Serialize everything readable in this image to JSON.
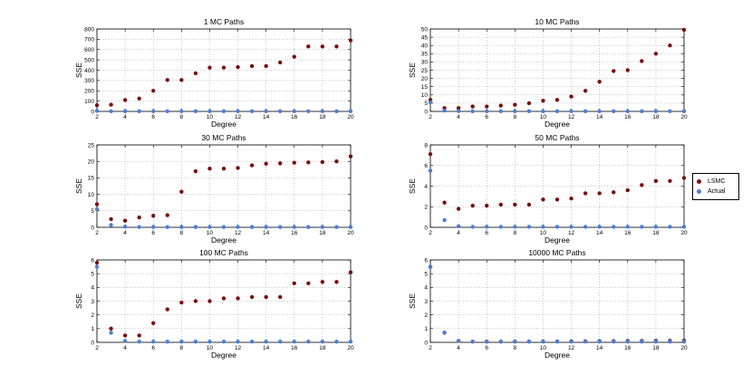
{
  "legend": {
    "items": [
      {
        "label": "LSMC",
        "color": "#7a0f0f"
      },
      {
        "label": "Actual",
        "color": "#4a7fd4"
      }
    ]
  },
  "chart_data": [
    {
      "type": "scatter",
      "title": "1 MC Paths",
      "xlabel": "Degree",
      "ylabel": "SSE",
      "xlim": [
        2,
        20
      ],
      "ylim": [
        0,
        800
      ],
      "xticks": [
        2,
        4,
        6,
        8,
        10,
        12,
        14,
        16,
        18,
        20
      ],
      "yticks": [
        0,
        100,
        200,
        300,
        400,
        500,
        600,
        700,
        800
      ],
      "grid": true,
      "x": [
        2,
        3,
        4,
        5,
        6,
        7,
        8,
        9,
        10,
        11,
        12,
        13,
        14,
        15,
        16,
        17,
        18,
        19,
        20
      ],
      "series": [
        {
          "name": "LSMC",
          "values": [
            60,
            65,
            110,
            125,
            200,
            305,
            305,
            370,
            425,
            425,
            430,
            440,
            440,
            475,
            530,
            630,
            630,
            630,
            690
          ]
        },
        {
          "name": "Actual",
          "values": [
            5,
            2,
            2,
            2,
            2,
            2,
            2,
            2,
            2,
            2,
            2,
            2,
            2,
            2,
            2,
            2,
            2,
            2,
            2
          ]
        }
      ]
    },
    {
      "type": "scatter",
      "title": "10 MC Paths",
      "xlabel": "Degree",
      "ylabel": "SSE",
      "xlim": [
        2,
        20
      ],
      "ylim": [
        0,
        50
      ],
      "xticks": [
        2,
        4,
        6,
        8,
        10,
        12,
        14,
        16,
        18,
        20
      ],
      "yticks": [
        0,
        5,
        10,
        15,
        20,
        25,
        30,
        35,
        40,
        45,
        50
      ],
      "grid": true,
      "x": [
        2,
        3,
        4,
        5,
        6,
        7,
        8,
        9,
        10,
        11,
        12,
        13,
        14,
        15,
        16,
        17,
        18,
        19,
        20
      ],
      "series": [
        {
          "name": "LSMC",
          "values": [
            7,
            2,
            2,
            3,
            3,
            3.5,
            4,
            5,
            6.5,
            7,
            9,
            12.5,
            18,
            24.5,
            25,
            30.5,
            35,
            40,
            49.5
          ]
        },
        {
          "name": "Actual",
          "values": [
            5.5,
            0.5,
            0.2,
            0.1,
            0.1,
            0.1,
            0.1,
            0.1,
            0.1,
            0.1,
            0.1,
            0.1,
            0.1,
            0.1,
            0.1,
            0.1,
            0.1,
            0.1,
            0.1
          ]
        }
      ]
    },
    {
      "type": "scatter",
      "title": "30 MC Paths",
      "xlabel": "Degree",
      "ylabel": "SSE",
      "xlim": [
        2,
        20
      ],
      "ylim": [
        0,
        25
      ],
      "xticks": [
        2,
        4,
        6,
        8,
        10,
        12,
        14,
        16,
        18,
        20
      ],
      "yticks": [
        0,
        5,
        10,
        15,
        20,
        25
      ],
      "grid": true,
      "x": [
        2,
        3,
        4,
        5,
        6,
        7,
        8,
        9,
        10,
        11,
        12,
        13,
        14,
        15,
        16,
        17,
        18,
        19,
        20
      ],
      "series": [
        {
          "name": "LSMC",
          "values": [
            7,
            2.5,
            2,
            3,
            3.5,
            3.7,
            10.8,
            17,
            17.8,
            17.8,
            18,
            18.8,
            19.3,
            19.4,
            19.6,
            19.7,
            19.8,
            20,
            21.5
          ]
        },
        {
          "name": "Actual",
          "values": [
            5.5,
            0.7,
            0.2,
            0.1,
            0.1,
            0.1,
            0.1,
            0.1,
            0.1,
            0.1,
            0.1,
            0.1,
            0.1,
            0.1,
            0.1,
            0.1,
            0.1,
            0.1,
            0.1
          ]
        }
      ]
    },
    {
      "type": "scatter",
      "title": "50 MC Paths",
      "xlabel": "Degree",
      "ylabel": "SSE",
      "xlim": [
        2,
        20
      ],
      "ylim": [
        0,
        8
      ],
      "xticks": [
        2,
        4,
        6,
        8,
        10,
        12,
        14,
        16,
        18,
        20
      ],
      "yticks": [
        0,
        2,
        4,
        6,
        8
      ],
      "grid": true,
      "x": [
        2,
        3,
        4,
        5,
        6,
        7,
        8,
        9,
        10,
        11,
        12,
        13,
        14,
        15,
        16,
        17,
        18,
        19,
        20
      ],
      "series": [
        {
          "name": "LSMC",
          "values": [
            7.1,
            2.4,
            1.8,
            2.1,
            2.1,
            2.2,
            2.2,
            2.2,
            2.7,
            2.7,
            2.8,
            3.3,
            3.3,
            3.4,
            3.6,
            4.1,
            4.5,
            4.5,
            4.8
          ]
        },
        {
          "name": "Actual",
          "values": [
            5.5,
            0.7,
            0.1,
            0.05,
            0.05,
            0.05,
            0.05,
            0.05,
            0.05,
            0.05,
            0.05,
            0.05,
            0.05,
            0.05,
            0.05,
            0.05,
            0.05,
            0.05,
            0.05
          ]
        }
      ]
    },
    {
      "type": "scatter",
      "title": "100 MC Paths",
      "xlabel": "Degree",
      "ylabel": "SSE",
      "xlim": [
        2,
        20
      ],
      "ylim": [
        0,
        6
      ],
      "xticks": [
        2,
        4,
        6,
        8,
        10,
        12,
        14,
        16,
        18,
        20
      ],
      "yticks": [
        0,
        1,
        2,
        3,
        4,
        5,
        6
      ],
      "grid": true,
      "x": [
        2,
        3,
        4,
        5,
        6,
        7,
        8,
        9,
        10,
        11,
        12,
        13,
        14,
        15,
        16,
        17,
        18,
        19,
        20
      ],
      "series": [
        {
          "name": "LSMC",
          "values": [
            5.8,
            1.0,
            0.5,
            0.5,
            1.4,
            2.4,
            2.9,
            3.0,
            3.0,
            3.2,
            3.2,
            3.3,
            3.3,
            3.3,
            4.3,
            4.3,
            4.4,
            4.4,
            5.1
          ]
        },
        {
          "name": "Actual",
          "values": [
            5.5,
            0.7,
            0.1,
            0.05,
            0.05,
            0.05,
            0.05,
            0.05,
            0.05,
            0.05,
            0.05,
            0.05,
            0.05,
            0.05,
            0.05,
            0.05,
            0.05,
            0.05,
            0.05
          ]
        }
      ]
    },
    {
      "type": "scatter",
      "title": "10000 MC Paths",
      "xlabel": "Degree",
      "ylabel": "SSE",
      "xlim": [
        2,
        20
      ],
      "ylim": [
        0,
        6
      ],
      "xticks": [
        2,
        4,
        6,
        8,
        10,
        12,
        14,
        16,
        18,
        20
      ],
      "yticks": [
        0,
        1,
        2,
        3,
        4,
        5,
        6
      ],
      "grid": true,
      "x": [
        2,
        3,
        4,
        5,
        6,
        7,
        8,
        9,
        10,
        11,
        12,
        13,
        14,
        15,
        16,
        17,
        18,
        19,
        20
      ],
      "series": [
        {
          "name": "LSMC",
          "values": [
            5.5,
            0.7,
            0.1,
            0.05,
            0.05,
            0.05,
            0.06,
            0.06,
            0.07,
            0.07,
            0.08,
            0.08,
            0.09,
            0.09,
            0.1,
            0.1,
            0.11,
            0.11,
            0.12
          ]
        },
        {
          "name": "Actual",
          "values": [
            5.5,
            0.7,
            0.1,
            0.05,
            0.05,
            0.05,
            0.05,
            0.05,
            0.05,
            0.05,
            0.05,
            0.05,
            0.05,
            0.05,
            0.05,
            0.05,
            0.05,
            0.05,
            0.05
          ]
        }
      ]
    }
  ]
}
